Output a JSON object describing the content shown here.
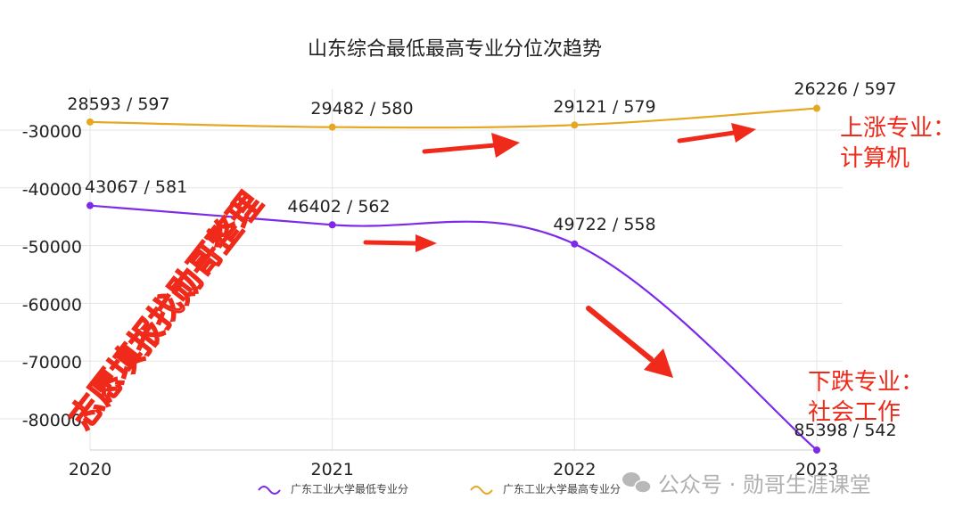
{
  "chart_data": {
    "type": "line",
    "title": "山东综合最低最高专业分位次趋势",
    "categories": [
      "2020",
      "2021",
      "2022",
      "2023"
    ],
    "yticks": [
      "-30000",
      "-40000",
      "-50000",
      "-60000",
      "-70000",
      "-80000"
    ],
    "ylim": [
      -86000,
      -24000
    ],
    "series": [
      {
        "name": "广东工业大学最低专业分",
        "color": "#7d2ae8",
        "values": [
          -43067,
          -46402,
          -49722,
          -85398
        ],
        "labels": [
          "43067 / 581",
          "46402 / 562",
          "49722 / 558",
          "85398 / 542"
        ]
      },
      {
        "name": "广东工业大学最高专业分",
        "color": "#e5a823",
        "values": [
          -28593,
          -29482,
          -29121,
          -26226
        ],
        "labels": [
          "28593 / 597",
          "29482 / 580",
          "29121 / 579",
          "26226 / 597"
        ]
      }
    ],
    "grid": true,
    "legend": "bottom"
  },
  "annotations": {
    "rising_line1": "上涨专业：",
    "rising_line2": "计算机",
    "falling_line1": "下跌专业：",
    "falling_line2": "社会工作",
    "watermark": "志愿填报找勋哥整理",
    "wechat_credit": "公众号 · 勋哥生涯课堂",
    "annotation_color": "#f02a1a"
  }
}
